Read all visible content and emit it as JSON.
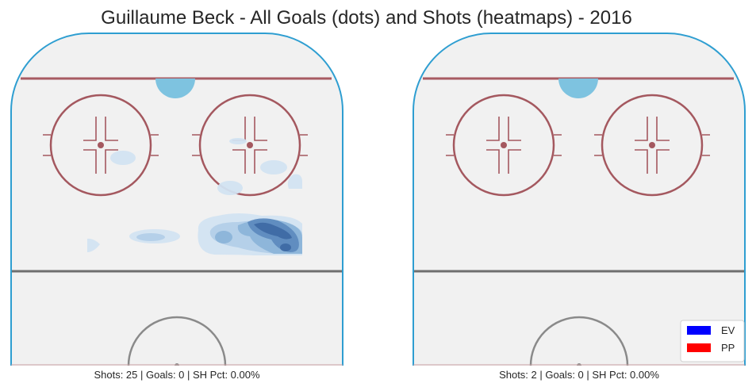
{
  "title": "Guillaume Beck - All Goals (dots) and Shots (heatmaps) - 2016",
  "colors": {
    "ice": "#f1f1f1",
    "boards": "#2e9ed1",
    "goal_line": "#a85b62",
    "faceoff": "#a4585f",
    "blue_line": "#6f6f6f",
    "crease": "#7ec3e0",
    "center_circle": "#8a8a8a",
    "heat_levels": [
      "#d2e3f1",
      "#b3cfe8",
      "#8cb4d9",
      "#5e8bbf",
      "#3e6aa4"
    ]
  },
  "chart_data": [
    {
      "type": "heatmap",
      "panel": "left",
      "caption": "Shots: 25 | Goals: 0 | SH Pct: 0.00%",
      "shots": 25,
      "goals": 0,
      "sh_pct": "0.00%",
      "goal_dots": []
    },
    {
      "type": "heatmap",
      "panel": "right",
      "caption": "Shots: 2 | Goals: 0 | SH Pct: 0.00%",
      "shots": 2,
      "goals": 0,
      "sh_pct": "0.00%",
      "goal_dots": []
    }
  ],
  "legend": [
    {
      "label": "EV",
      "color": "#0000ff"
    },
    {
      "label": "PP",
      "color": "#ff0000"
    }
  ]
}
